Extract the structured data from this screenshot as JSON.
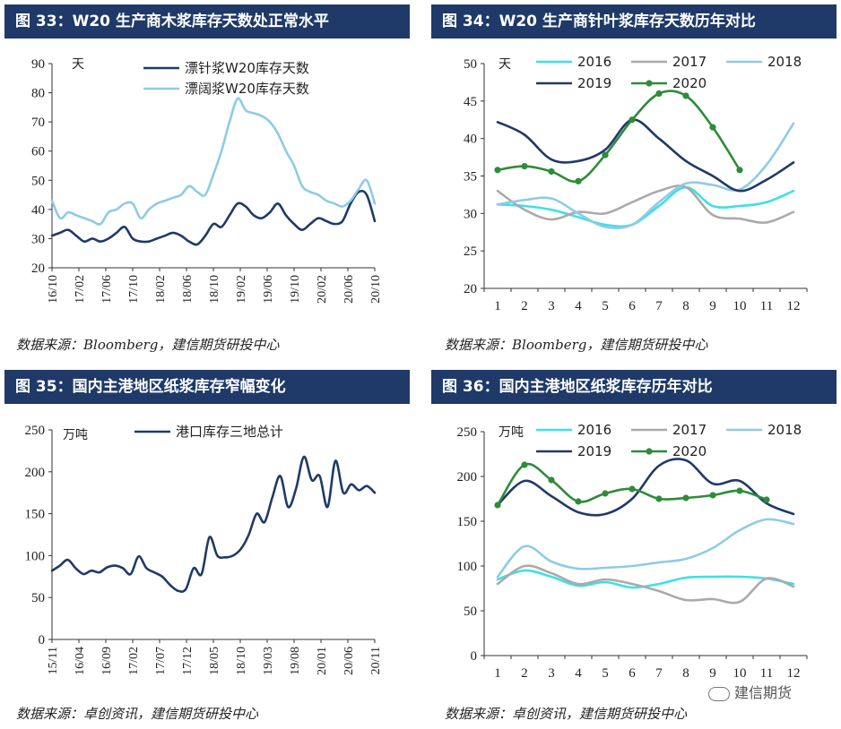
{
  "panels": [
    {
      "title": "图 33：W20 生产商木浆库存天数处正常水平",
      "source": "数据来源：Bloomberg，建信期货研投中心",
      "chart_data": {
        "type": "line",
        "unit": "天",
        "ylim": [
          20,
          90
        ],
        "yticks": [
          20,
          30,
          40,
          50,
          60,
          70,
          80,
          90
        ],
        "xlabels": [
          "16/10",
          "17/02",
          "17/06",
          "17/10",
          "18/02",
          "18/06",
          "18/10",
          "19/02",
          "19/06",
          "19/10",
          "20/02",
          "20/06",
          "20/10"
        ],
        "series": [
          {
            "name": "漂针浆W20库存天数",
            "color": "#1f3a68",
            "values": [
              31,
              32,
              33,
              31,
              29,
              30,
              29,
              30,
              32,
              34,
              30,
              29,
              29,
              30,
              31,
              32,
              31,
              29,
              28,
              31,
              35,
              34,
              38,
              42,
              41,
              38,
              37,
              39,
              42,
              38,
              35,
              33,
              35,
              37,
              36,
              35,
              36,
              42,
              46,
              45,
              36
            ]
          },
          {
            "name": "漂阔浆W20库存天数",
            "color": "#8ecbe6",
            "values": [
              43,
              37,
              39,
              38,
              37,
              36,
              35,
              39,
              40,
              42,
              42,
              37,
              40,
              42,
              43,
              44,
              45,
              48,
              46,
              45,
              52,
              60,
              70,
              78,
              74,
              73,
              72,
              70,
              66,
              60,
              55,
              48,
              46,
              45,
              43,
              42,
              41,
              43,
              47,
              50,
              42
            ]
          }
        ],
        "legend_position": "top"
      }
    },
    {
      "title": "图 34：W20 生产商针叶浆库存天数历年对比",
      "source": "数据来源：Bloomberg，建信期货研投中心",
      "chart_data": {
        "type": "line",
        "unit": "天",
        "ylim": [
          20,
          50
        ],
        "yticks": [
          20,
          25,
          30,
          35,
          40,
          45,
          50
        ],
        "xlabels": [
          "1",
          "2",
          "3",
          "4",
          "5",
          "6",
          "7",
          "8",
          "9",
          "10",
          "11",
          "12"
        ],
        "series": [
          {
            "name": "2016",
            "color": "#3ee0e4",
            "values": [
              31.2,
              31.0,
              30.5,
              29.5,
              28.5,
              28.5,
              31.0,
              33.5,
              31.0,
              31.0,
              31.5,
              33.0
            ]
          },
          {
            "name": "2017",
            "color": "#aaaaaa",
            "values": [
              33.0,
              30.5,
              29.2,
              30.2,
              30.0,
              31.5,
              33.0,
              33.5,
              29.8,
              29.3,
              28.8,
              30.2
            ]
          },
          {
            "name": "2018",
            "color": "#8ecbe6",
            "values": [
              31.2,
              31.8,
              32.0,
              30.0,
              28.2,
              28.5,
              31.5,
              34.0,
              33.8,
              33.2,
              36.5,
              42.0
            ]
          },
          {
            "name": "2019",
            "color": "#1f3a68",
            "values": [
              42.2,
              40.5,
              37.2,
              37.0,
              38.5,
              42.5,
              40.0,
              37.0,
              35.0,
              33.0,
              34.5,
              36.8
            ]
          },
          {
            "name": "2020",
            "color": "#2e8b3a",
            "markers": true,
            "values": [
              35.8,
              36.3,
              35.6,
              34.3,
              37.8,
              42.5,
              46.0,
              45.7,
              41.5,
              35.8
            ]
          }
        ],
        "legend_position": "top"
      }
    },
    {
      "title": "图 35：国内主港地区纸浆库存窄幅变化",
      "source": "数据来源：卓创资讯，建信期货研投中心",
      "chart_data": {
        "type": "line",
        "unit": "万吨",
        "ylim": [
          0,
          250
        ],
        "yticks": [
          0,
          50,
          100,
          150,
          200,
          250
        ],
        "xlabels": [
          "15/11",
          "16/04",
          "16/09",
          "17/02",
          "17/07",
          "17/12",
          "18/05",
          "18/10",
          "19/03",
          "19/08",
          "20/01",
          "20/06",
          "20/11"
        ],
        "series": [
          {
            "name": "港口库存三地总计",
            "color": "#1f3a68",
            "values": [
              82,
              88,
              95,
              85,
              78,
              82,
              80,
              86,
              88,
              85,
              78,
              99,
              85,
              80,
              75,
              65,
              58,
              60,
              85,
              78,
              122,
              100,
              98,
              100,
              108,
              125,
              150,
              140,
              170,
              195,
              158,
              180,
              218,
              190,
              195,
              158,
              213,
              175,
              185,
              178,
              183,
              175
            ]
          }
        ],
        "legend_position": "top"
      }
    },
    {
      "title": "图 36：国内主港地区纸浆库存历年对比",
      "source": "数据来源：卓创资讯，建信期货研投中心",
      "chart_data": {
        "type": "line",
        "unit": "万吨",
        "ylim": [
          0,
          250
        ],
        "yticks": [
          0,
          50,
          100,
          150,
          200,
          250
        ],
        "xlabels": [
          "1",
          "2",
          "3",
          "4",
          "5",
          "6",
          "7",
          "8",
          "9",
          "10",
          "11",
          "12"
        ],
        "series": [
          {
            "name": "2016",
            "color": "#3ee0e4",
            "values": [
              85,
              95,
              88,
              78,
              82,
              76,
              80,
              87,
              88,
              88,
              86,
              80
            ]
          },
          {
            "name": "2017",
            "color": "#aaaaaa",
            "values": [
              80,
              100,
              92,
              80,
              85,
              80,
              72,
              62,
              63,
              60,
              86,
              77
            ]
          },
          {
            "name": "2018",
            "color": "#8ecbe6",
            "values": [
              88,
              122,
              105,
              97,
              98,
              100,
              104,
              108,
              120,
              140,
              152,
              147
            ]
          },
          {
            "name": "2019",
            "color": "#1f3a68",
            "values": [
              168,
              195,
              178,
              160,
              158,
              175,
              212,
              218,
              192,
              195,
              170,
              158
            ]
          },
          {
            "name": "2020",
            "color": "#2e8b3a",
            "markers": true,
            "values": [
              168,
              213,
              196,
              172,
              181,
              186,
              175,
              176,
              179,
              184,
              174
            ]
          }
        ],
        "legend_position": "top"
      }
    }
  ],
  "watermark": "建信期货"
}
